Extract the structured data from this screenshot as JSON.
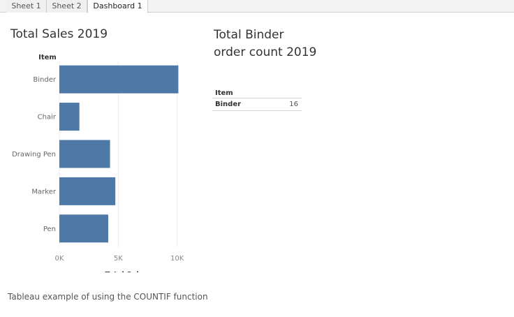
{
  "tabs": [
    {
      "label": "Sheet 1",
      "active": false
    },
    {
      "label": "Sheet 2",
      "active": false
    },
    {
      "label": "Dashboard 1",
      "active": true
    }
  ],
  "sales_sheet": {
    "title": "Total Sales 2019"
  },
  "binder_sheet": {
    "title": "Total Binder order count 2019",
    "table": {
      "column_header": "Item",
      "rows": [
        {
          "item": "Binder",
          "value": "16"
        }
      ]
    }
  },
  "caption": "Tableau example of using the COUNTIF function",
  "colors": {
    "bar": "#4e79a7",
    "grid": "#ececec"
  },
  "chart_data": {
    "type": "bar",
    "orientation": "horizontal",
    "title": "Total Sales 2019",
    "category_header": "Item",
    "categories": [
      "Binder",
      "Chair",
      "Drawing Pen",
      "Marker",
      "Pen"
    ],
    "values": [
      10100,
      1700,
      4300,
      4750,
      4150
    ],
    "xlabel": "Total Sales",
    "ylabel": "",
    "xlim": [
      0,
      11500
    ],
    "ticks": [
      {
        "value": 0,
        "label": "0K"
      },
      {
        "value": 5000,
        "label": "5K"
      },
      {
        "value": 10000,
        "label": "10K"
      }
    ],
    "grid": true
  }
}
